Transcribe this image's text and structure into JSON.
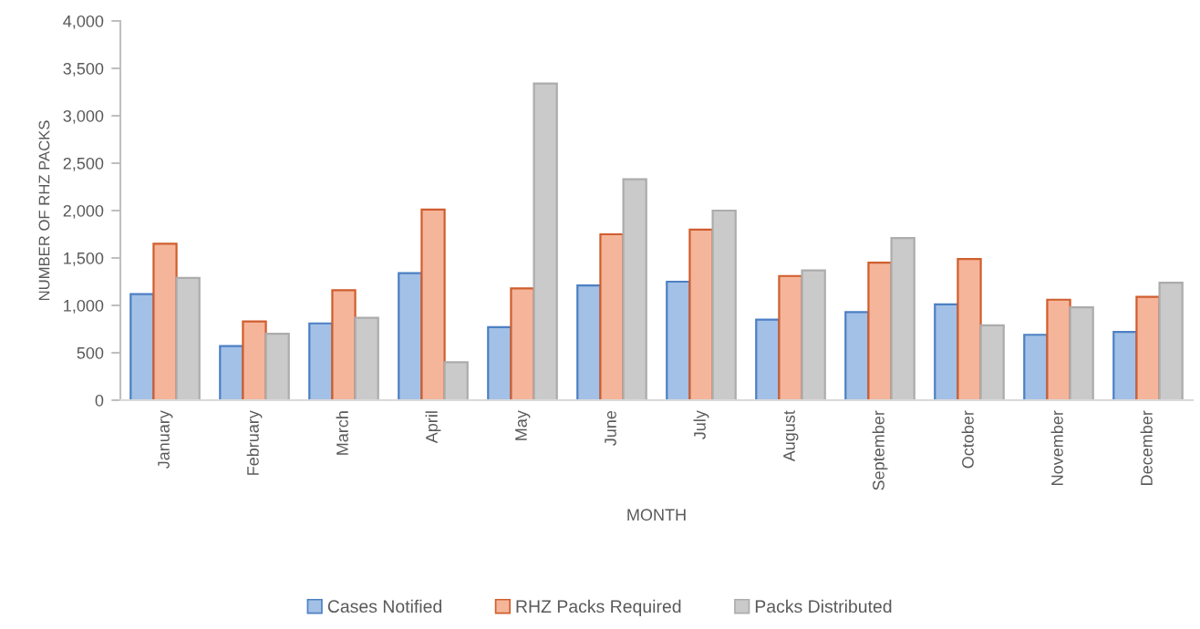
{
  "chart_data": {
    "type": "bar",
    "xlabel": "MONTH",
    "ylabel": "NUMBER OF RHZ PACKS",
    "categories": [
      "January",
      "February",
      "March",
      "April",
      "May",
      "June",
      "July",
      "August",
      "September",
      "October",
      "November",
      "December"
    ],
    "series": [
      {
        "name": "Cases Notified",
        "color": "#a3c0e6",
        "values": [
          1120,
          570,
          810,
          1340,
          770,
          1210,
          1250,
          850,
          930,
          1010,
          690,
          720
        ]
      },
      {
        "name": "RHZ Packs Required",
        "color": "#f5b59a",
        "values": [
          1650,
          830,
          1160,
          2010,
          1180,
          1750,
          1800,
          1310,
          1450,
          1490,
          1060,
          1090
        ]
      },
      {
        "name": "Packs Distributed",
        "color": "#cacaca",
        "values": [
          1290,
          700,
          870,
          400,
          3340,
          2330,
          2000,
          1370,
          1710,
          790,
          980,
          1240
        ]
      }
    ],
    "ylim": [
      0,
      4000
    ],
    "yticks": [
      {
        "value": 0,
        "label": "0"
      },
      {
        "value": 500,
        "label": "500"
      },
      {
        "value": 1000,
        "label": "1,000"
      },
      {
        "value": 1500,
        "label": "1,500"
      },
      {
        "value": 2000,
        "label": "2,000"
      },
      {
        "value": 2500,
        "label": "2,500"
      },
      {
        "value": 3000,
        "label": "3,000"
      },
      {
        "value": 3500,
        "label": "3,500"
      },
      {
        "value": 4000,
        "label": "4,000"
      }
    ],
    "legend": "bottom"
  }
}
